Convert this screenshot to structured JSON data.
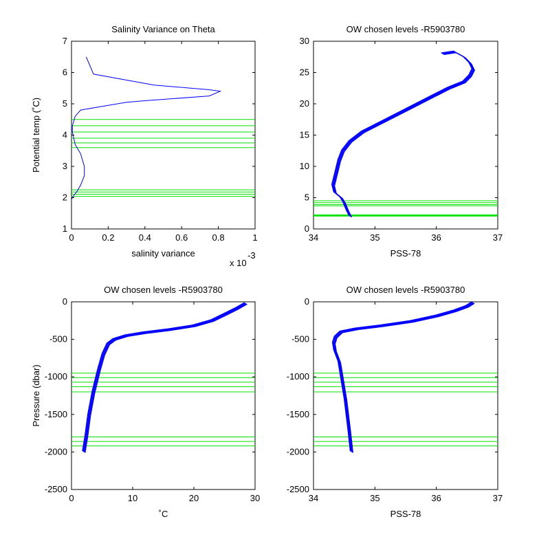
{
  "colors": {
    "profile": "#0000ff",
    "level": "#00e000",
    "axis": "#000000"
  },
  "chart_data": [
    {
      "type": "line",
      "title": "Salinity Variance on Theta",
      "xlabel": "salinity variance",
      "ylabel": "Potential temp (˚C)",
      "xlim": [
        0,
        0.001
      ],
      "ylim": [
        1,
        7
      ],
      "x_ticks": [
        "0",
        "0.2",
        "0.4",
        "0.6",
        "0.8",
        "1"
      ],
      "x_tick_values": [
        0,
        0.0002,
        0.0004,
        0.0006,
        0.0008,
        0.001
      ],
      "y_ticks": [
        "1",
        "2",
        "3",
        "4",
        "5",
        "6",
        "7"
      ],
      "y_tick_values": [
        1,
        2,
        3,
        4,
        5,
        6,
        7
      ],
      "x_exponent": {
        "base": "x 10",
        "power": "-3"
      },
      "series": [
        {
          "x": [
            8e-05,
            0.00012,
            0.00045,
            0.00075,
            0.00081,
            0.00075,
            0.0004,
            0.0003,
            0.00015,
            5e-05,
            2e-05,
            5e-06,
            5e-06,
            2e-05,
            5e-05,
            7e-05,
            7e-05,
            5e-05,
            3e-05,
            1e-05,
            0.0
          ],
          "y": [
            6.5,
            5.95,
            5.6,
            5.45,
            5.4,
            5.25,
            5.1,
            5.05,
            4.9,
            4.8,
            4.6,
            4.3,
            4.1,
            3.7,
            3.4,
            3.0,
            2.7,
            2.4,
            2.2,
            2.05,
            1.95
          ]
        }
      ],
      "hlines": [
        4.5,
        4.3,
        4.1,
        3.9,
        3.75,
        3.6,
        2.25,
        2.18,
        2.11,
        2.04
      ]
    },
    {
      "type": "line",
      "title": "OW chosen levels -R5903780",
      "xlabel": "PSS-78",
      "ylabel": "",
      "xlim": [
        34,
        37
      ],
      "ylim": [
        0,
        30
      ],
      "x_ticks": [
        "34",
        "35",
        "36",
        "37"
      ],
      "x_tick_values": [
        34,
        35,
        36,
        37
      ],
      "y_ticks": [
        "0",
        "5",
        "10",
        "15",
        "20",
        "25",
        "30"
      ],
      "y_tick_values": [
        0,
        5,
        10,
        15,
        20,
        25,
        30
      ],
      "series": [
        {
          "x": [
            34.6,
            34.55,
            34.5,
            34.45,
            34.35,
            34.32,
            34.37,
            34.42,
            34.48,
            34.6,
            34.8,
            35.1,
            35.5,
            35.9,
            36.2,
            36.45,
            36.55,
            36.6,
            36.55,
            36.45,
            36.3,
            36.1
          ],
          "y": [
            2.0,
            3.0,
            4.2,
            5.0,
            5.8,
            7.0,
            9.0,
            11.0,
            12.5,
            14.0,
            15.5,
            17.0,
            19.0,
            21.0,
            22.5,
            23.5,
            24.5,
            25.5,
            26.5,
            27.5,
            28.3,
            28.0
          ]
        }
      ],
      "hlines": [
        4.5,
        4.2,
        3.9,
        3.7,
        2.25,
        2.15,
        2.05
      ]
    },
    {
      "type": "line",
      "title": "OW chosen levels -R5903780",
      "xlabel": "˚C",
      "ylabel": "Pressure (dbar)",
      "xlim": [
        0,
        30
      ],
      "ylim": [
        -2500,
        0
      ],
      "x_ticks": [
        "0",
        "10",
        "20",
        "30"
      ],
      "x_tick_values": [
        0,
        10,
        20,
        30
      ],
      "y_ticks": [
        "0",
        "-500",
        "-1000",
        "-1500",
        "-2000",
        "-2500"
      ],
      "y_tick_values": [
        0,
        -500,
        -1000,
        -1500,
        -2000,
        -2500
      ],
      "series": [
        {
          "x": [
            2.0,
            2.4,
            2.9,
            3.6,
            4.5,
            5.2,
            6.0,
            7.0,
            9.0,
            12.0,
            16.0,
            20.0,
            23.0,
            25.0,
            27.0,
            28.5
          ],
          "y": [
            -2000,
            -1800,
            -1500,
            -1200,
            -900,
            -700,
            -560,
            -500,
            -450,
            -410,
            -370,
            -320,
            -250,
            -170,
            -90,
            -20
          ]
        }
      ],
      "hlines": [
        -950,
        -1010,
        -1070,
        -1130,
        -1200,
        -1800,
        -1860,
        -1920
      ]
    },
    {
      "type": "line",
      "title": "OW chosen levels -R5903780",
      "xlabel": "PSS-78",
      "ylabel": "",
      "xlim": [
        34,
        37
      ],
      "ylim": [
        -2500,
        0
      ],
      "x_ticks": [
        "34",
        "35",
        "36",
        "37"
      ],
      "x_tick_values": [
        34,
        35,
        36,
        37
      ],
      "y_ticks": [
        "0",
        "-500",
        "-1000",
        "-1500",
        "-2000",
        "-2500"
      ],
      "y_tick_values": [
        0,
        -500,
        -1000,
        -1500,
        -2000,
        -2500
      ],
      "series": [
        {
          "x": [
            34.62,
            34.58,
            34.52,
            34.46,
            34.42,
            34.35,
            34.33,
            34.36,
            34.45,
            34.7,
            35.1,
            35.6,
            36.0,
            36.3,
            36.5,
            36.6
          ],
          "y": [
            -2000,
            -1700,
            -1300,
            -1000,
            -800,
            -650,
            -550,
            -470,
            -400,
            -360,
            -320,
            -260,
            -190,
            -120,
            -60,
            -10
          ]
        }
      ],
      "hlines": [
        -950,
        -1010,
        -1070,
        -1130,
        -1200,
        -1800,
        -1860,
        -1920
      ]
    }
  ]
}
